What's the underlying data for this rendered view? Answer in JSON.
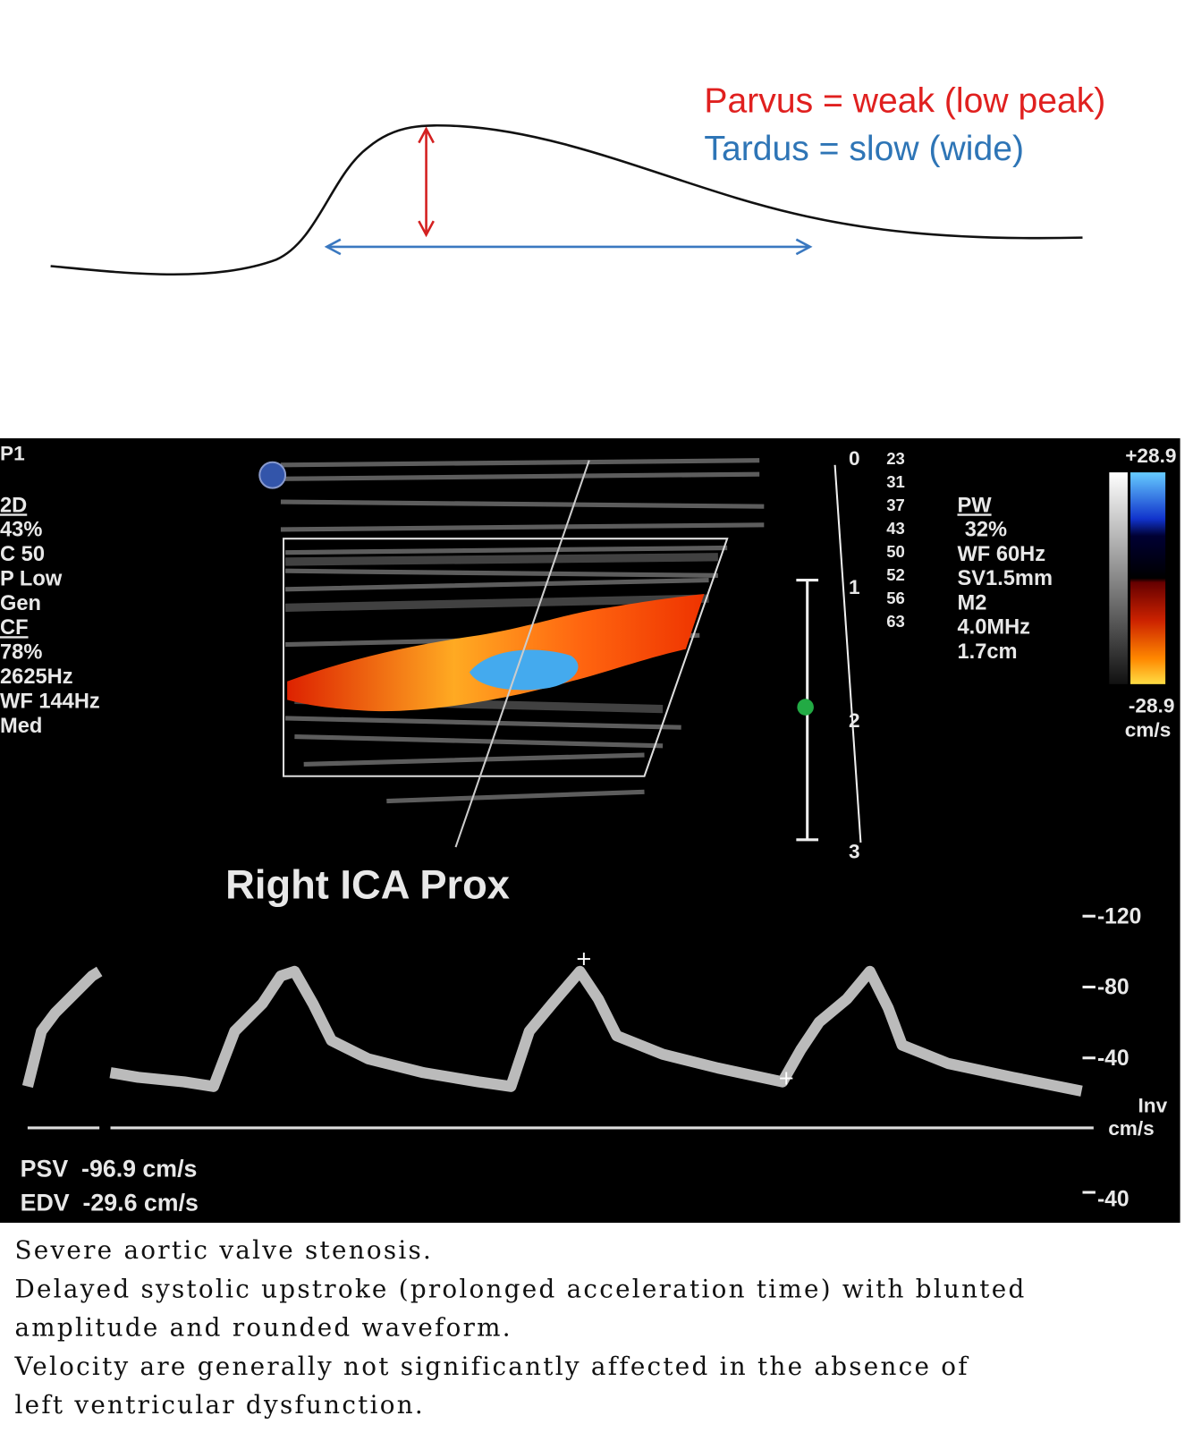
{
  "diagram": {
    "parvus": "Parvus = weak (low peak)",
    "tardus": "Tardus = slow (wide)"
  },
  "ultrasound": {
    "probe": "P1",
    "left_panel": [
      "2D",
      "43%",
      "C 50",
      "P Low",
      "Gen",
      "CF",
      "78%",
      "2625Hz",
      "WF 144Hz",
      "Med"
    ],
    "depth_marks": [
      "0",
      "1",
      "2",
      "3"
    ],
    "angle_values": [
      "23",
      "31",
      "37",
      "43",
      "50",
      "52",
      "56",
      "63"
    ],
    "right_panel": [
      "PW",
      "32%",
      "WF 60Hz",
      "SV1.5mm",
      "M2",
      "4.0MHz",
      "1.7cm"
    ],
    "color_scale": {
      "top": "+28.9",
      "bottom": "-28.9",
      "unit": "cm/s"
    },
    "title": "Right ICA Prox",
    "velocity_scale": [
      "-120",
      "-80",
      "-40"
    ],
    "inv": "Inv",
    "unit": "cm/s",
    "measurements": [
      "PSV  -96.9 cm/s",
      "EDV  -29.6 cm/s"
    ],
    "bottom_scale": "-40"
  },
  "caption": [
    "Severe aortic valve stenosis.",
    "Delayed systolic upstroke (prolonged acceleration time) with blunted",
    "amplitude and rounded waveform.",
    "Velocity are generally not significantly affected in the absence of",
    "left ventricular dysfunction."
  ]
}
